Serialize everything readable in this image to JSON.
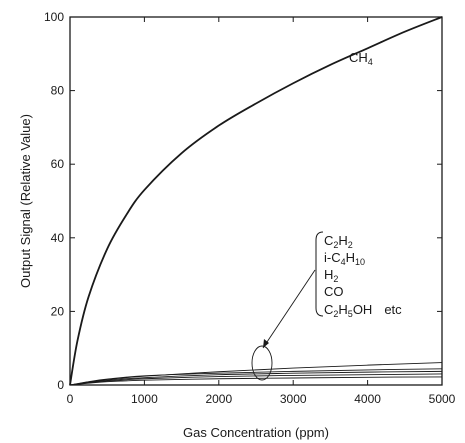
{
  "chart_data": {
    "type": "line",
    "xlabel": "Gas Concentration (ppm)",
    "ylabel": "Output Signal (Relative Value)",
    "xlim": [
      0,
      5000
    ],
    "ylim": [
      0,
      100
    ],
    "xticks": [
      0,
      1000,
      2000,
      3000,
      4000,
      5000
    ],
    "yticks": [
      0,
      20,
      40,
      60,
      80,
      100
    ],
    "grid": false,
    "series": [
      {
        "name": "CH4",
        "x": [
          0,
          100,
          250,
          500,
          750,
          1000,
          1500,
          2000,
          2500,
          3000,
          3500,
          4000,
          4500,
          5000
        ],
        "y": [
          0,
          12,
          24,
          37,
          46,
          53,
          63,
          70.5,
          76.5,
          82,
          87,
          91.5,
          96,
          100
        ]
      },
      {
        "name": "",
        "x": [
          0,
          250,
          500,
          1000,
          2000,
          3000,
          4000,
          5000
        ],
        "y": [
          0,
          0.8,
          1.5,
          2.4,
          3.6,
          4.6,
          5.4,
          6.1
        ]
      },
      {
        "name": "",
        "x": [
          0,
          250,
          500,
          1000,
          2000,
          3000,
          4000,
          5000
        ],
        "y": [
          0,
          0.9,
          1.6,
          2.5,
          3.2,
          3.7,
          4.1,
          4.4
        ]
      },
      {
        "name": "",
        "x": [
          0,
          250,
          500,
          1000,
          2000,
          3000,
          4000,
          5000
        ],
        "y": [
          0,
          0.7,
          1.3,
          2.0,
          2.8,
          3.2,
          3.5,
          3.7
        ]
      },
      {
        "name": "",
        "x": [
          0,
          250,
          500,
          1000,
          2000,
          3000,
          4000,
          5000
        ],
        "y": [
          0,
          0.6,
          1.1,
          1.7,
          2.3,
          2.6,
          2.8,
          3.0
        ]
      },
      {
        "name": "",
        "x": [
          0,
          250,
          500,
          1000,
          2000,
          3000,
          4000,
          5000
        ],
        "y": [
          0,
          0.5,
          0.9,
          1.3,
          1.7,
          1.9,
          2.1,
          2.2
        ]
      }
    ],
    "annotations": {
      "ch4_label": {
        "base": "CH",
        "sub": "4"
      },
      "gas_list": {
        "c2h2": {
          "p1": "C",
          "s1": "2",
          "p2": "H",
          "s2": "2"
        },
        "ic4h10": {
          "p1": "i-C",
          "s1": "4",
          "p2": "H",
          "s2": "10"
        },
        "h2": {
          "p1": "H",
          "s1": "2"
        },
        "co": {
          "p1": "CO"
        },
        "c2h5oh": {
          "p1": "C",
          "s1": "2",
          "p2": "H",
          "s2": "5",
          "p3": "OH",
          "etc": "etc"
        }
      }
    },
    "colors": {
      "line": "#1a1a1a",
      "background": "#ffffff"
    }
  }
}
